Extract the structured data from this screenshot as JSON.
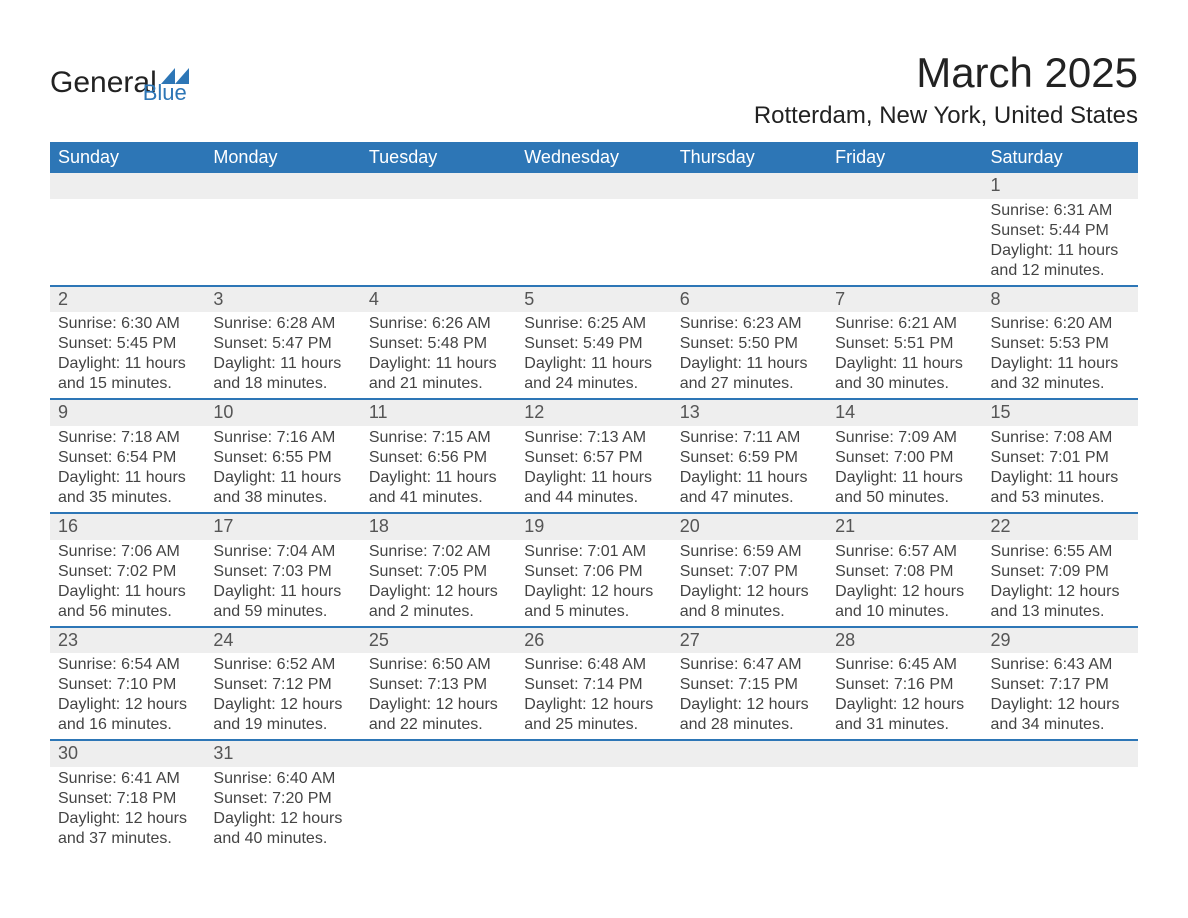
{
  "logo": {
    "text1": "General",
    "text2": "Blue",
    "shape_color": "#2d76b6",
    "text1_color": "#222222",
    "text2_color": "#2d76b6"
  },
  "title": "March 2025",
  "location": "Rotterdam, New York, United States",
  "colors": {
    "header_bg": "#2d76b6",
    "header_text": "#ffffff",
    "daynum_bg": "#eeeeee",
    "row_divider": "#2d76b6",
    "body_text": "#444444",
    "background": "#ffffff"
  },
  "fonts": {
    "title_size_pt": 32,
    "location_size_pt": 18,
    "header_size_pt": 14,
    "daynum_size_pt": 14,
    "body_size_pt": 12
  },
  "layout": {
    "columns": 7,
    "weeks": 6,
    "week_start": "Sunday"
  },
  "weekdays": [
    "Sunday",
    "Monday",
    "Tuesday",
    "Wednesday",
    "Thursday",
    "Friday",
    "Saturday"
  ],
  "weeks": [
    [
      null,
      null,
      null,
      null,
      null,
      null,
      {
        "n": "1",
        "sr": "Sunrise: 6:31 AM",
        "ss": "Sunset: 5:44 PM",
        "d1": "Daylight: 11 hours",
        "d2": "and 12 minutes."
      }
    ],
    [
      {
        "n": "2",
        "sr": "Sunrise: 6:30 AM",
        "ss": "Sunset: 5:45 PM",
        "d1": "Daylight: 11 hours",
        "d2": "and 15 minutes."
      },
      {
        "n": "3",
        "sr": "Sunrise: 6:28 AM",
        "ss": "Sunset: 5:47 PM",
        "d1": "Daylight: 11 hours",
        "d2": "and 18 minutes."
      },
      {
        "n": "4",
        "sr": "Sunrise: 6:26 AM",
        "ss": "Sunset: 5:48 PM",
        "d1": "Daylight: 11 hours",
        "d2": "and 21 minutes."
      },
      {
        "n": "5",
        "sr": "Sunrise: 6:25 AM",
        "ss": "Sunset: 5:49 PM",
        "d1": "Daylight: 11 hours",
        "d2": "and 24 minutes."
      },
      {
        "n": "6",
        "sr": "Sunrise: 6:23 AM",
        "ss": "Sunset: 5:50 PM",
        "d1": "Daylight: 11 hours",
        "d2": "and 27 minutes."
      },
      {
        "n": "7",
        "sr": "Sunrise: 6:21 AM",
        "ss": "Sunset: 5:51 PM",
        "d1": "Daylight: 11 hours",
        "d2": "and 30 minutes."
      },
      {
        "n": "8",
        "sr": "Sunrise: 6:20 AM",
        "ss": "Sunset: 5:53 PM",
        "d1": "Daylight: 11 hours",
        "d2": "and 32 minutes."
      }
    ],
    [
      {
        "n": "9",
        "sr": "Sunrise: 7:18 AM",
        "ss": "Sunset: 6:54 PM",
        "d1": "Daylight: 11 hours",
        "d2": "and 35 minutes."
      },
      {
        "n": "10",
        "sr": "Sunrise: 7:16 AM",
        "ss": "Sunset: 6:55 PM",
        "d1": "Daylight: 11 hours",
        "d2": "and 38 minutes."
      },
      {
        "n": "11",
        "sr": "Sunrise: 7:15 AM",
        "ss": "Sunset: 6:56 PM",
        "d1": "Daylight: 11 hours",
        "d2": "and 41 minutes."
      },
      {
        "n": "12",
        "sr": "Sunrise: 7:13 AM",
        "ss": "Sunset: 6:57 PM",
        "d1": "Daylight: 11 hours",
        "d2": "and 44 minutes."
      },
      {
        "n": "13",
        "sr": "Sunrise: 7:11 AM",
        "ss": "Sunset: 6:59 PM",
        "d1": "Daylight: 11 hours",
        "d2": "and 47 minutes."
      },
      {
        "n": "14",
        "sr": "Sunrise: 7:09 AM",
        "ss": "Sunset: 7:00 PM",
        "d1": "Daylight: 11 hours",
        "d2": "and 50 minutes."
      },
      {
        "n": "15",
        "sr": "Sunrise: 7:08 AM",
        "ss": "Sunset: 7:01 PM",
        "d1": "Daylight: 11 hours",
        "d2": "and 53 minutes."
      }
    ],
    [
      {
        "n": "16",
        "sr": "Sunrise: 7:06 AM",
        "ss": "Sunset: 7:02 PM",
        "d1": "Daylight: 11 hours",
        "d2": "and 56 minutes."
      },
      {
        "n": "17",
        "sr": "Sunrise: 7:04 AM",
        "ss": "Sunset: 7:03 PM",
        "d1": "Daylight: 11 hours",
        "d2": "and 59 minutes."
      },
      {
        "n": "18",
        "sr": "Sunrise: 7:02 AM",
        "ss": "Sunset: 7:05 PM",
        "d1": "Daylight: 12 hours",
        "d2": "and 2 minutes."
      },
      {
        "n": "19",
        "sr": "Sunrise: 7:01 AM",
        "ss": "Sunset: 7:06 PM",
        "d1": "Daylight: 12 hours",
        "d2": "and 5 minutes."
      },
      {
        "n": "20",
        "sr": "Sunrise: 6:59 AM",
        "ss": "Sunset: 7:07 PM",
        "d1": "Daylight: 12 hours",
        "d2": "and 8 minutes."
      },
      {
        "n": "21",
        "sr": "Sunrise: 6:57 AM",
        "ss": "Sunset: 7:08 PM",
        "d1": "Daylight: 12 hours",
        "d2": "and 10 minutes."
      },
      {
        "n": "22",
        "sr": "Sunrise: 6:55 AM",
        "ss": "Sunset: 7:09 PM",
        "d1": "Daylight: 12 hours",
        "d2": "and 13 minutes."
      }
    ],
    [
      {
        "n": "23",
        "sr": "Sunrise: 6:54 AM",
        "ss": "Sunset: 7:10 PM",
        "d1": "Daylight: 12 hours",
        "d2": "and 16 minutes."
      },
      {
        "n": "24",
        "sr": "Sunrise: 6:52 AM",
        "ss": "Sunset: 7:12 PM",
        "d1": "Daylight: 12 hours",
        "d2": "and 19 minutes."
      },
      {
        "n": "25",
        "sr": "Sunrise: 6:50 AM",
        "ss": "Sunset: 7:13 PM",
        "d1": "Daylight: 12 hours",
        "d2": "and 22 minutes."
      },
      {
        "n": "26",
        "sr": "Sunrise: 6:48 AM",
        "ss": "Sunset: 7:14 PM",
        "d1": "Daylight: 12 hours",
        "d2": "and 25 minutes."
      },
      {
        "n": "27",
        "sr": "Sunrise: 6:47 AM",
        "ss": "Sunset: 7:15 PM",
        "d1": "Daylight: 12 hours",
        "d2": "and 28 minutes."
      },
      {
        "n": "28",
        "sr": "Sunrise: 6:45 AM",
        "ss": "Sunset: 7:16 PM",
        "d1": "Daylight: 12 hours",
        "d2": "and 31 minutes."
      },
      {
        "n": "29",
        "sr": "Sunrise: 6:43 AM",
        "ss": "Sunset: 7:17 PM",
        "d1": "Daylight: 12 hours",
        "d2": "and 34 minutes."
      }
    ],
    [
      {
        "n": "30",
        "sr": "Sunrise: 6:41 AM",
        "ss": "Sunset: 7:18 PM",
        "d1": "Daylight: 12 hours",
        "d2": "and 37 minutes."
      },
      {
        "n": "31",
        "sr": "Sunrise: 6:40 AM",
        "ss": "Sunset: 7:20 PM",
        "d1": "Daylight: 12 hours",
        "d2": "and 40 minutes."
      },
      null,
      null,
      null,
      null,
      null
    ]
  ]
}
